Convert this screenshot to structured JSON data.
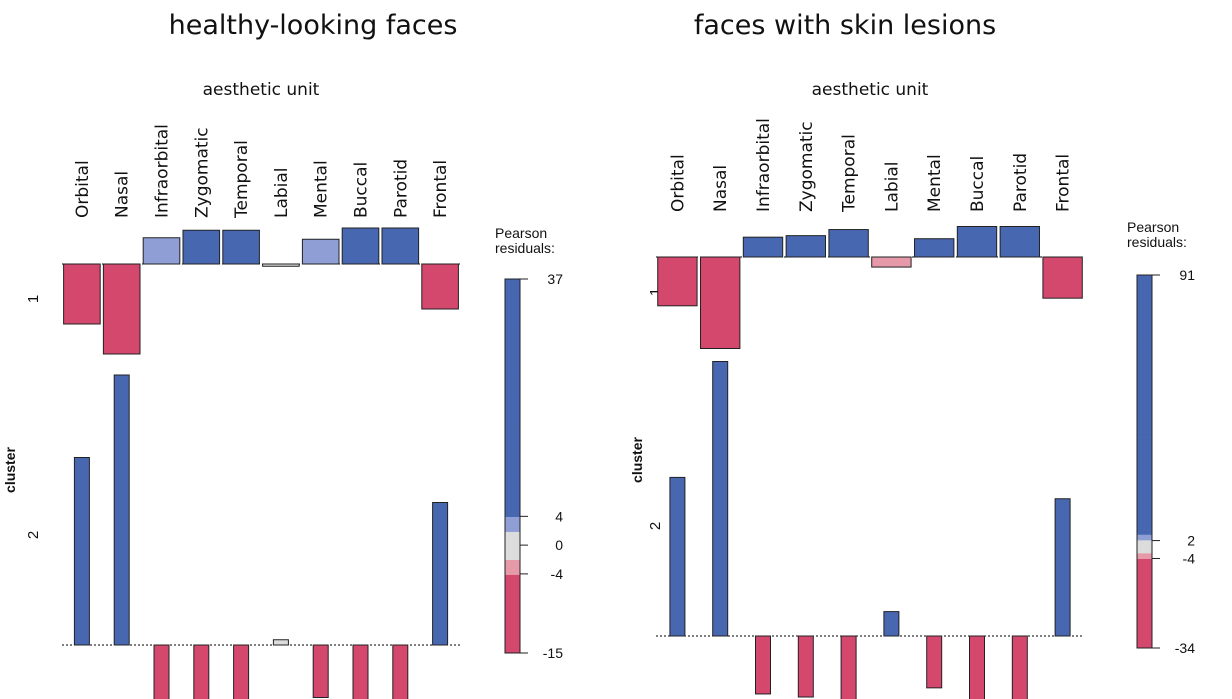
{
  "chart_data": [
    {
      "type": "assoc",
      "title": "healthy-looking faces",
      "xlabel": "aesthetic unit",
      "ylabel": "cluster",
      "categories": [
        "Orbital",
        "Nasal",
        "Infraorbital",
        "Zygomatic",
        "Temporal",
        "Labial",
        "Mental",
        "Buccal",
        "Parotid",
        "Frontal"
      ],
      "series": [
        {
          "name": "1",
          "values": [
            -8,
            -12,
            3.5,
            4.5,
            4.5,
            -0.3,
            3.3,
            4.8,
            4.8,
            -6
          ]
        },
        {
          "name": "2",
          "values": [
            25,
            36,
            -8,
            -10,
            -10,
            0.7,
            -7,
            -11,
            -11,
            19
          ]
        }
      ],
      "legend_title": [
        "Pearson",
        "residuals:"
      ],
      "legend_lim": [
        -15,
        37
      ],
      "legend_ticks": [
        37,
        4,
        0,
        -4,
        -15
      ],
      "shading": {
        "thresholds": [
          2,
          4
        ],
        "colors": {
          "pos_strong": "#4767b1",
          "pos_weak": "#8f9fd6",
          "neutral": "#dcdcdc",
          "neg_weak": "#e69aa9",
          "neg_strong": "#d4486e"
        }
      }
    },
    {
      "type": "assoc",
      "title": "faces with skin lesions",
      "xlabel": "aesthetic unit",
      "ylabel": "cluster",
      "categories": [
        "Orbital",
        "Nasal",
        "Infraorbital",
        "Zygomatic",
        "Temporal",
        "Labial",
        "Mental",
        "Buccal",
        "Parotid",
        "Frontal"
      ],
      "series": [
        {
          "name": "1",
          "values": [
            -16,
            -30,
            6.5,
            7,
            9,
            -3.3,
            6,
            10,
            10,
            -13.5
          ]
        },
        {
          "name": "2",
          "values": [
            52,
            90,
            -19,
            -20,
            -25,
            8,
            -17,
            -27,
            -27,
            45
          ]
        }
      ],
      "legend_title": [
        "Pearson",
        "residuals:"
      ],
      "legend_lim": [
        -34,
        91
      ],
      "legend_ticks": [
        91,
        2,
        -4,
        -34
      ],
      "shading": {
        "thresholds": [
          2,
          4
        ],
        "colors": {
          "pos_strong": "#4767b1",
          "pos_weak": "#8f9fd6",
          "neutral": "#dcdcdc",
          "neg_weak": "#e69aa9",
          "neg_strong": "#d4486e"
        }
      }
    }
  ]
}
